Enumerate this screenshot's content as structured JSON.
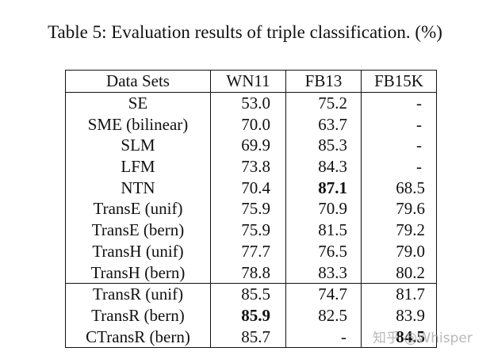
{
  "caption": "Table 5: Evaluation results of triple classification. (%)",
  "table": {
    "headers": [
      "Data Sets",
      "WN11",
      "FB13",
      "FB15K"
    ],
    "rows": [
      {
        "name": "SE",
        "wn11": "53.0",
        "fb13": "75.2",
        "fb15k": "-"
      },
      {
        "name": "SME (bilinear)",
        "wn11": "70.0",
        "fb13": "63.7",
        "fb15k": "-"
      },
      {
        "name": "SLM",
        "wn11": "69.9",
        "fb13": "85.3",
        "fb15k": "-"
      },
      {
        "name": "LFM",
        "wn11": "73.8",
        "fb13": "84.3",
        "fb15k": "-"
      },
      {
        "name": "NTN",
        "wn11": "70.4",
        "fb13": "87.1",
        "fb15k": "68.5"
      },
      {
        "name": "TransE (unif)",
        "wn11": "75.9",
        "fb13": "70.9",
        "fb15k": "79.6"
      },
      {
        "name": "TransE (bern)",
        "wn11": "75.9",
        "fb13": "81.5",
        "fb15k": "79.2"
      },
      {
        "name": "TransH (unif)",
        "wn11": "77.7",
        "fb13": "76.5",
        "fb15k": "79.0"
      },
      {
        "name": "TransH (bern)",
        "wn11": "78.8",
        "fb13": "83.3",
        "fb15k": "80.2"
      },
      {
        "name": "TransR (unif)",
        "wn11": "85.5",
        "fb13": "74.7",
        "fb15k": "81.7"
      },
      {
        "name": "TransR (bern)",
        "wn11": "85.9",
        "fb13": "82.5",
        "fb15k": "83.9"
      },
      {
        "name": "CTransR (bern)",
        "wn11": "85.7",
        "fb13": "-",
        "fb15k": "84.5"
      }
    ]
  },
  "watermark": "知乎 @Whisper"
}
